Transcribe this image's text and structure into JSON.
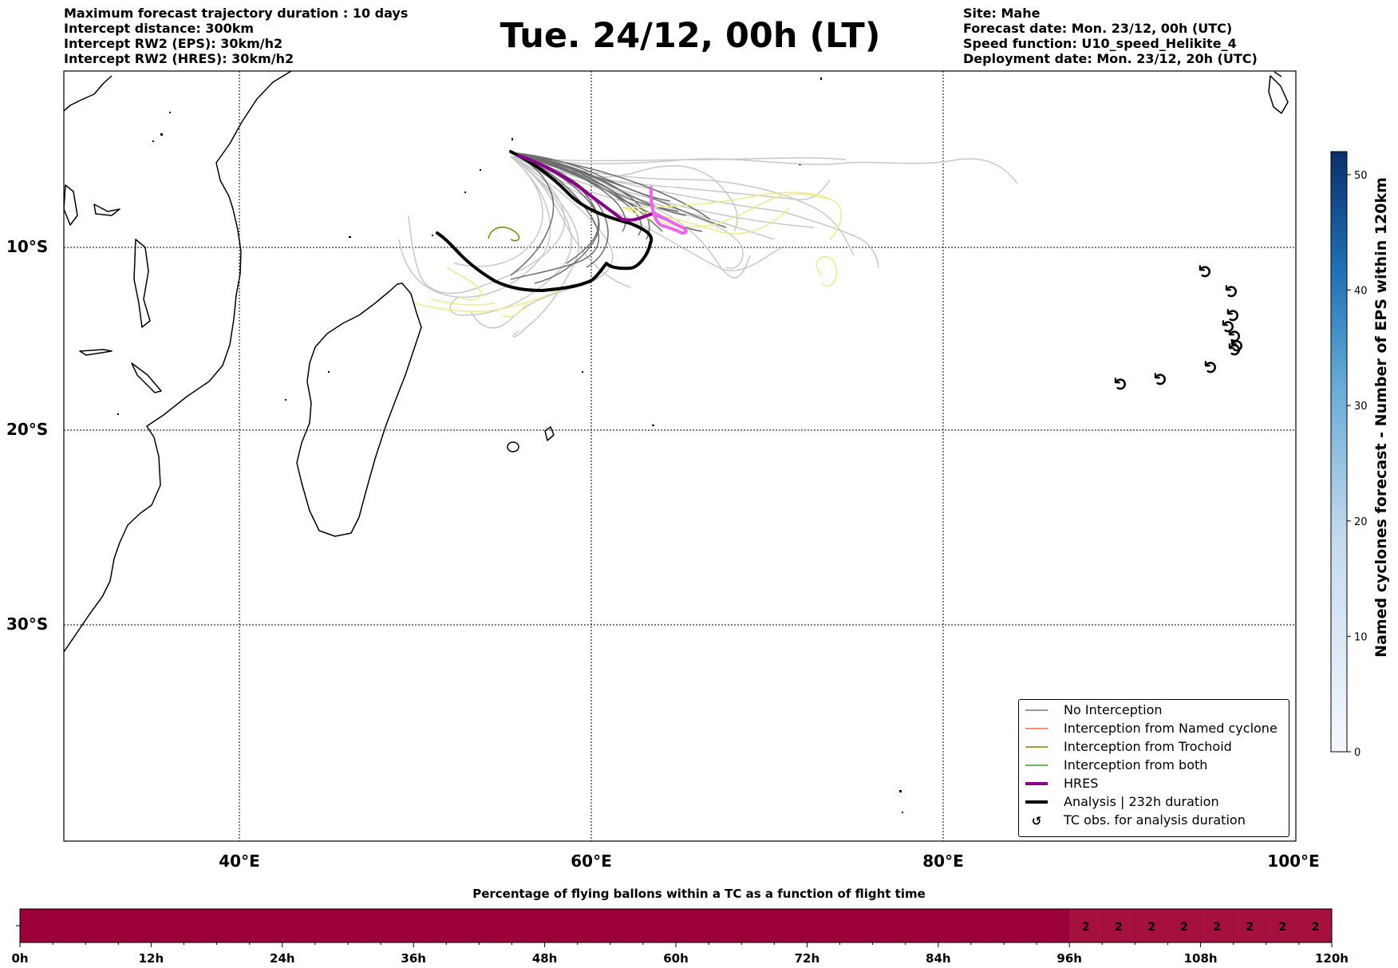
{
  "header_left": [
    "Maximum forecast trajectory duration : 10 days",
    "Intercept distance: 300km",
    "Intercept RW2 (EPS):  30km/h2",
    "Intercept RW2 (HRES): 30km/h2"
  ],
  "title": "Tue. 24/12, 00h (LT)",
  "header_right": [
    "Site: Mahe",
    "Forecast date: Mon. 23/12, 00h (UTC)",
    "Speed function: U10_speed_Helikite_4",
    "Deployment date: Mon. 23/12, 20h (UTC)"
  ],
  "map": {
    "lat_labels": [
      "10°S",
      "20°S",
      "30°S"
    ],
    "lon_labels": [
      "40°E",
      "60°E",
      "80°E",
      "100°E"
    ],
    "gridlines": true,
    "tc_symbol": "↺",
    "tc_obs_count": 10
  },
  "legend": {
    "items": [
      {
        "label": "No Interception",
        "color": "#777777",
        "style": "line-thin"
      },
      {
        "label": "Interception from Named cyclone",
        "color": "#ff6a3d",
        "style": "line-thin"
      },
      {
        "label": "Interception from Trochoid",
        "color": "#808000",
        "style": "line-thin"
      },
      {
        "label": "Interception from both",
        "color": "#2ca02c",
        "style": "line-thin"
      },
      {
        "label": "HRES",
        "color": "#8b008b",
        "style": "line-thick"
      },
      {
        "label": "Analysis | 232h duration",
        "color": "#000000",
        "style": "line-thick"
      },
      {
        "label": "TC obs. for analysis duration",
        "color": "#000000",
        "style": "marker"
      }
    ]
  },
  "colorbar": {
    "label": "Named cyclones forecast - Number of EPS within 120km",
    "ticks": [
      "0",
      "10",
      "20",
      "30",
      "40",
      "50"
    ],
    "min": 0,
    "max": 52,
    "color_low": "#f4f8fd",
    "color_high": "#08306b"
  },
  "timebar": {
    "title": "Percentage of flying ballons within a TC as a function of flight time",
    "tick_labels": [
      "0h",
      "12h",
      "24h",
      "36h",
      "48h",
      "60h",
      "72h",
      "84h",
      "96h",
      "108h",
      "120h"
    ],
    "max_hours": 120,
    "base_color": "#9b0039",
    "value_color": "#a5103f",
    "cells": [
      {
        "start_h": 96,
        "value": "2"
      },
      {
        "start_h": 99,
        "value": "2"
      },
      {
        "start_h": 102,
        "value": "2"
      },
      {
        "start_h": 105,
        "value": "2"
      },
      {
        "start_h": 108,
        "value": "2"
      },
      {
        "start_h": 111,
        "value": "2"
      },
      {
        "start_h": 114,
        "value": "2"
      },
      {
        "start_h": 117,
        "value": "2"
      }
    ]
  }
}
